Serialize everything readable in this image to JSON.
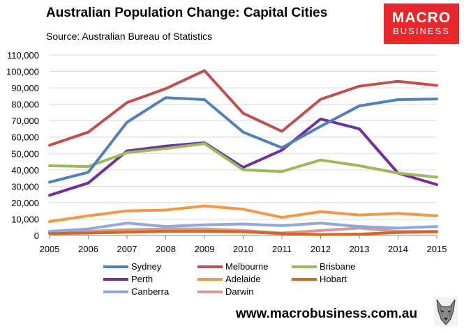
{
  "header": {
    "title": "Australian Population Change: Capital Cities",
    "subtitle": "Source: Australian Bureau of Statistics"
  },
  "logo": {
    "line1": "MACRO",
    "line2": "BUSINESS",
    "color": "#e8262b"
  },
  "footer": {
    "url": "www.macrobusiness.com.au",
    "mascot_icon": "wolf-head-icon"
  },
  "chart_data": {
    "type": "line",
    "title": "",
    "xlabel": "",
    "ylabel": "",
    "x": [
      "2005",
      "2006",
      "2007",
      "2008",
      "2009",
      "2010",
      "2011",
      "2012",
      "2013",
      "2014",
      "2015"
    ],
    "ylim": [
      0,
      110000
    ],
    "yticks": [
      0,
      10000,
      20000,
      30000,
      40000,
      50000,
      60000,
      70000,
      80000,
      90000,
      100000,
      110000
    ],
    "ytick_labels": [
      "0",
      "10,000",
      "20,000",
      "30,000",
      "40,000",
      "50,000",
      "60,000",
      "70,000",
      "80,000",
      "90,000",
      "100,000",
      "110,000"
    ],
    "grid": "horizontal",
    "legend_position": "bottom",
    "series": [
      {
        "name": "Sydney",
        "color": "#4f81bd",
        "values": [
          32500,
          38500,
          69000,
          84000,
          82800,
          63000,
          53500,
          66500,
          79000,
          82800,
          83200
        ]
      },
      {
        "name": "Melbourne",
        "color": "#c0504d",
        "values": [
          55000,
          63000,
          81000,
          89500,
          100500,
          74500,
          63500,
          83000,
          91000,
          94000,
          91500
        ]
      },
      {
        "name": "Brisbane",
        "color": "#9bbb59",
        "values": [
          42500,
          42000,
          50500,
          53000,
          56000,
          40000,
          39000,
          46000,
          42500,
          38000,
          35500
        ]
      },
      {
        "name": "Perth",
        "color": "#7030a0",
        "values": [
          24500,
          32000,
          51500,
          54500,
          56500,
          41500,
          52000,
          71000,
          65000,
          38000,
          31000
        ]
      },
      {
        "name": "Adelaide",
        "color": "#f79646",
        "values": [
          8500,
          12000,
          15000,
          15500,
          18000,
          16000,
          11000,
          14500,
          12500,
          13500,
          12000
        ]
      },
      {
        "name": "Hobart",
        "color": "#d2691e",
        "values": [
          1200,
          1500,
          2000,
          2500,
          2500,
          2200,
          1200,
          500,
          800,
          1800,
          2200
        ]
      },
      {
        "name": "Canberra",
        "color": "#8eaadb",
        "values": [
          2500,
          4000,
          7500,
          5500,
          6500,
          7000,
          6000,
          7500,
          5500,
          4500,
          5500
        ]
      },
      {
        "name": "Darwin",
        "color": "#d99795",
        "values": [
          2000,
          2500,
          3500,
          4000,
          4000,
          3000,
          1500,
          3000,
          4500,
          2500,
          2500
        ]
      }
    ]
  }
}
